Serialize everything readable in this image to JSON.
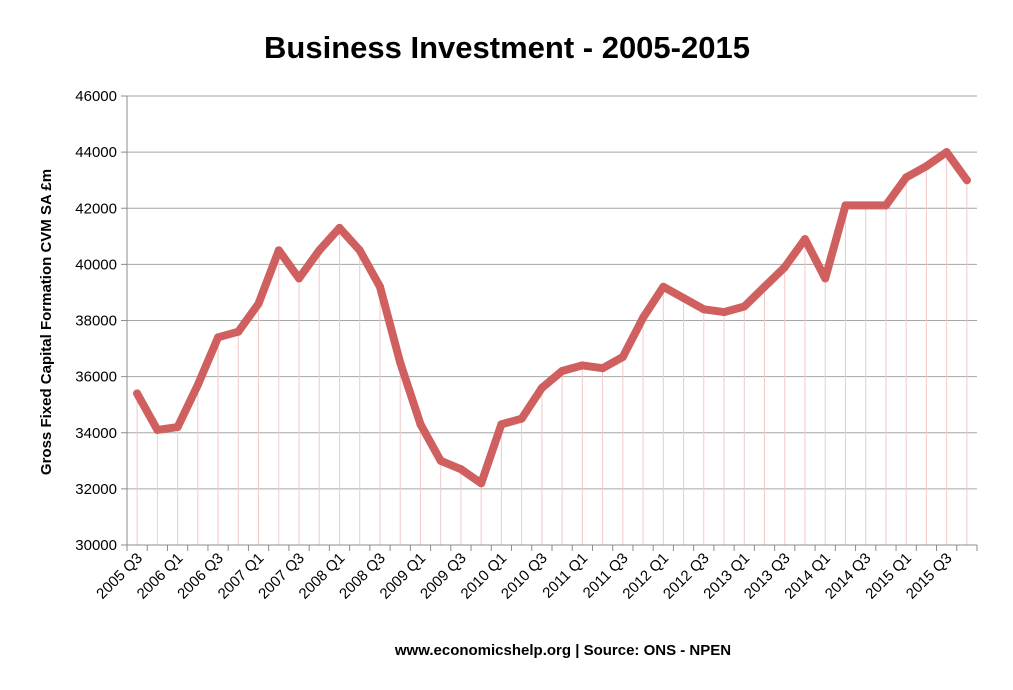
{
  "chart_data": {
    "type": "line",
    "title": "Business Investment - 2005-2015",
    "ylabel": "Gross Fixed Capital Formation CVM SA £m",
    "xlabel": "",
    "source": "www.economicshelp.org | Source: ONS - NPEN",
    "ylim": [
      30000,
      46000
    ],
    "yticks": [
      30000,
      32000,
      34000,
      36000,
      38000,
      40000,
      42000,
      44000,
      46000
    ],
    "grid": true,
    "legend": "none",
    "x": [
      "2005 Q3",
      "2005 Q4",
      "2006 Q1",
      "2006 Q2",
      "2006 Q3",
      "2006 Q4",
      "2007 Q1",
      "2007 Q2",
      "2007 Q3",
      "2007 Q4",
      "2008 Q1",
      "2008 Q2",
      "2008 Q3",
      "2008 Q4",
      "2009 Q1",
      "2009 Q2",
      "2009 Q3",
      "2009 Q4",
      "2010 Q1",
      "2010 Q2",
      "2010 Q3",
      "2010 Q4",
      "2011 Q1",
      "2011 Q2",
      "2011 Q3",
      "2011 Q4",
      "2012 Q1",
      "2012 Q2",
      "2012 Q3",
      "2012 Q4",
      "2013 Q1",
      "2013 Q2",
      "2013 Q3",
      "2013 Q4",
      "2014 Q1",
      "2014 Q2",
      "2014 Q3",
      "2014 Q4",
      "2015 Q1",
      "2015 Q2",
      "2015 Q3",
      "2015 Q4"
    ],
    "tick_labels": [
      "2005 Q3",
      "2006 Q1",
      "2006 Q3",
      "2007 Q1",
      "2007 Q3",
      "2008 Q1",
      "2008 Q3",
      "2009 Q1",
      "2009 Q3",
      "2010 Q1",
      "2010 Q3",
      "2011 Q1",
      "2011 Q3",
      "2012 Q1",
      "2012 Q3",
      "2013 Q1",
      "2013 Q3",
      "2014 Q1",
      "2014 Q3",
      "2015 Q1",
      "2015 Q3"
    ],
    "series": [
      {
        "values": [
          35400,
          34100,
          34200,
          35700,
          37400,
          37600,
          38600,
          40500,
          39500,
          40500,
          41300,
          40500,
          39200,
          36500,
          34300,
          33000,
          32700,
          32200,
          34300,
          34500,
          35600,
          36200,
          36400,
          36300,
          36700,
          38100,
          39200,
          38800,
          38400,
          38300,
          38500,
          39200,
          39900,
          40900,
          39500,
          42100,
          42100,
          42100,
          43100,
          43500,
          44000,
          43000
        ],
        "color": "#d06060"
      }
    ],
    "drop_line_color": "#f2c9c9"
  }
}
